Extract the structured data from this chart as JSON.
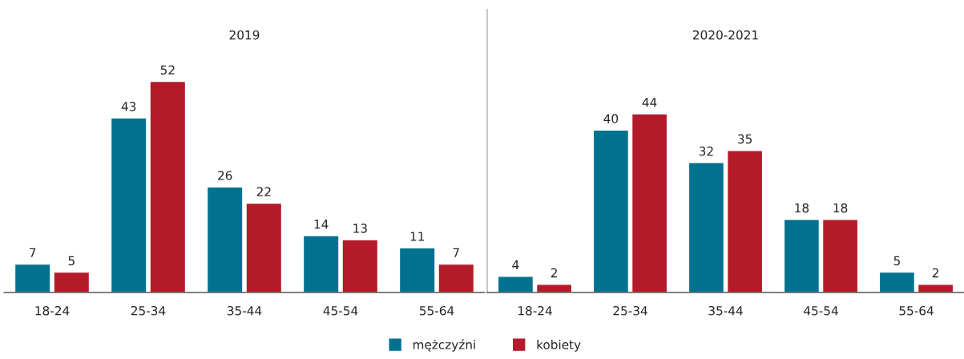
{
  "chart_data": [
    {
      "type": "bar",
      "title": "2019",
      "categories": [
        "18-24",
        "25-34",
        "35-44",
        "45-54",
        "55-64"
      ],
      "series": [
        {
          "name": "mężczyźni",
          "color": "#00728f",
          "values": [
            7,
            43,
            26,
            14,
            11
          ]
        },
        {
          "name": "kobiety",
          "color": "#b31b2a",
          "values": [
            5,
            52,
            22,
            13,
            7
          ]
        }
      ],
      "data_labels": true,
      "legend": "bottom",
      "grid": false
    },
    {
      "type": "bar",
      "title": "2020-2021",
      "categories": [
        "18-24",
        "25-34",
        "35-44",
        "45-54",
        "55-64"
      ],
      "series": [
        {
          "color": "#00728f",
          "values": [
            4,
            40,
            32,
            18,
            5
          ]
        },
        {
          "color": "#b31b2a",
          "values": [
            2,
            44,
            35,
            18,
            2
          ]
        }
      ],
      "data_labels": true,
      "grid": false
    }
  ]
}
